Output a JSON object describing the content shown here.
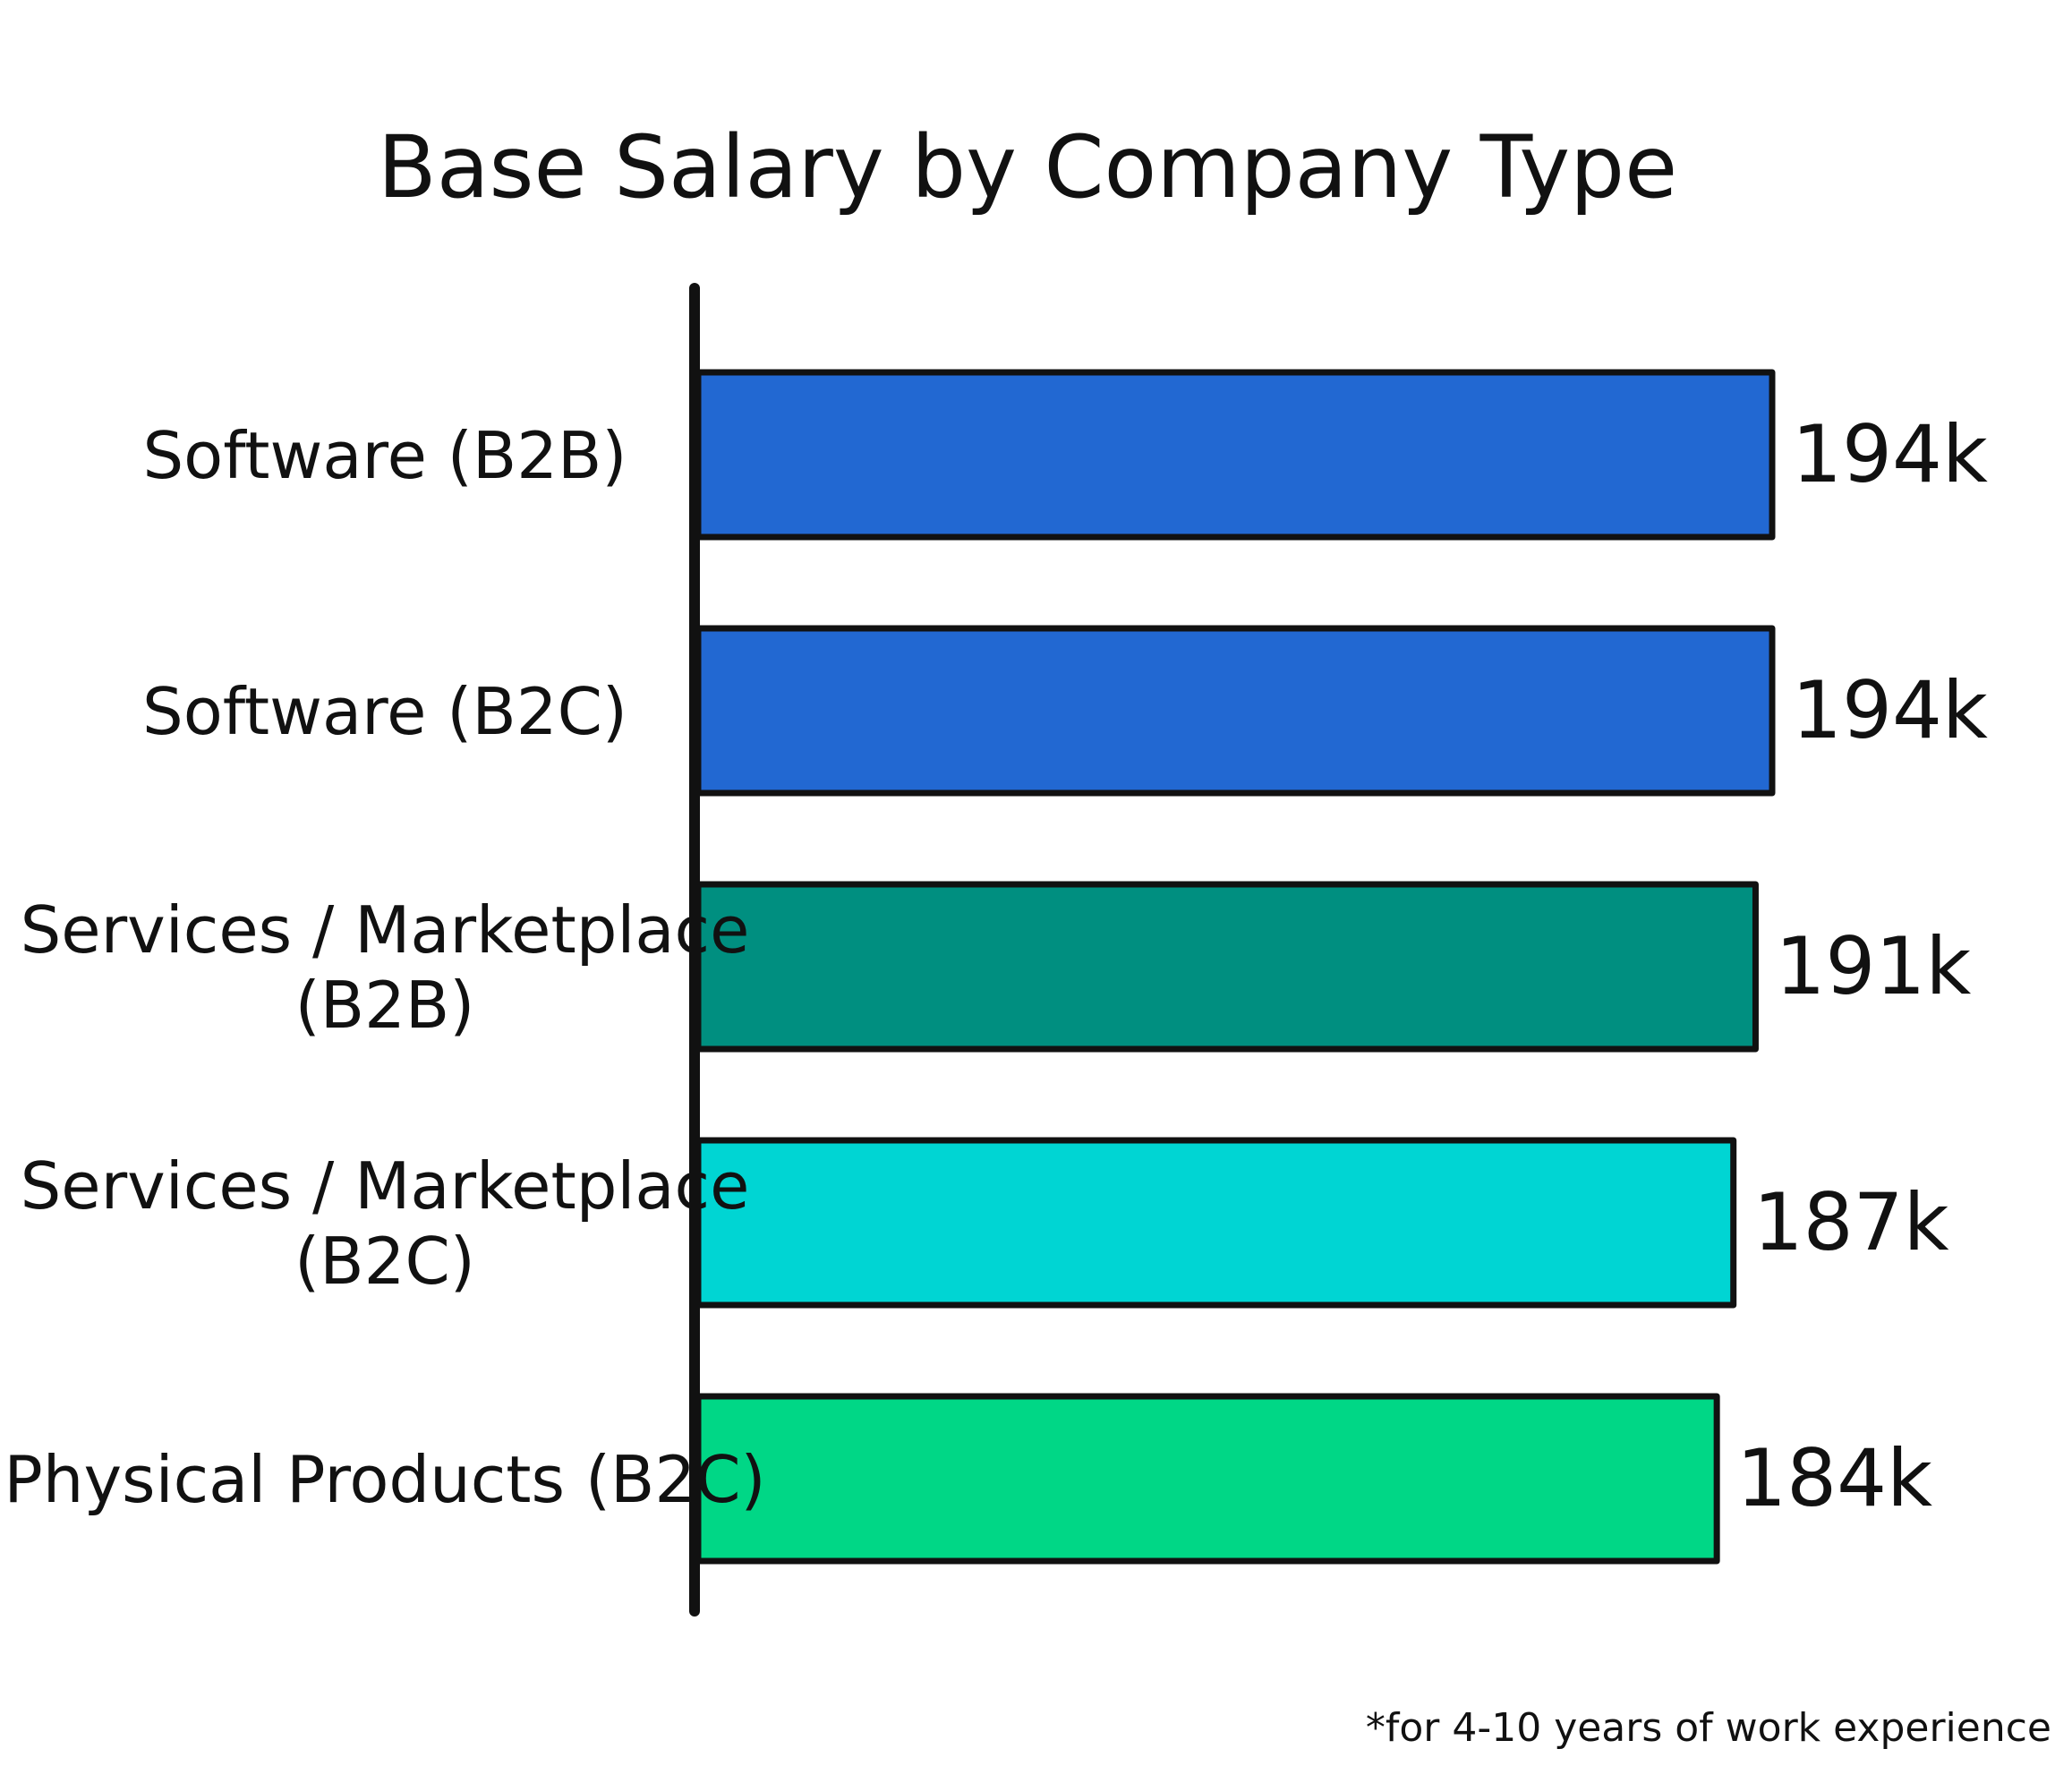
{
  "chart_data": {
    "type": "bar",
    "orientation": "horizontal",
    "title": "Base Salary by Company Type",
    "categories": [
      [
        "Software (B2B)"
      ],
      [
        "Software (B2C)"
      ],
      [
        "Services / Marketplace",
        "(B2B)"
      ],
      [
        "Services / Marketplace",
        "(B2C)"
      ],
      [
        "Physical Products (B2C)"
      ]
    ],
    "values": [
      194,
      194,
      191,
      187,
      184
    ],
    "value_labels": [
      "194k",
      "194k",
      "191k",
      "187k",
      "184k"
    ],
    "unit": "k",
    "bar_colors": [
      "#2268D2",
      "#2268D2",
      "#008F80",
      "#00D5D3",
      "#00D786"
    ],
    "xlim": [
      0,
      194
    ],
    "grid": false,
    "legend": "none",
    "footnote": "*for 4-10 years of work experience"
  }
}
